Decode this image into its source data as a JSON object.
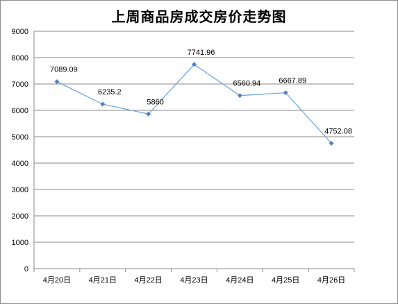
{
  "chart_data": {
    "type": "line",
    "title": "上周商品房成交房价走势图",
    "categories": [
      "4月20日",
      "4月21日",
      "4月22日",
      "4月23日",
      "4月24日",
      "4月25日",
      "4月26日"
    ],
    "series": [
      {
        "values": [
          7089.09,
          6235.2,
          5860,
          7741.96,
          6560.94,
          6667.89,
          4752.08
        ],
        "data_labels": [
          "7089.09",
          "6235.2",
          "5860",
          "7741.96",
          "6560.94",
          "6667.89",
          "4752.08"
        ],
        "color": "#6fa8dc"
      }
    ],
    "ylim": [
      0,
      9000
    ],
    "yticks": [
      0,
      1000,
      2000,
      3000,
      4000,
      5000,
      6000,
      7000,
      8000,
      9000
    ],
    "grid": true,
    "legend": "none"
  }
}
